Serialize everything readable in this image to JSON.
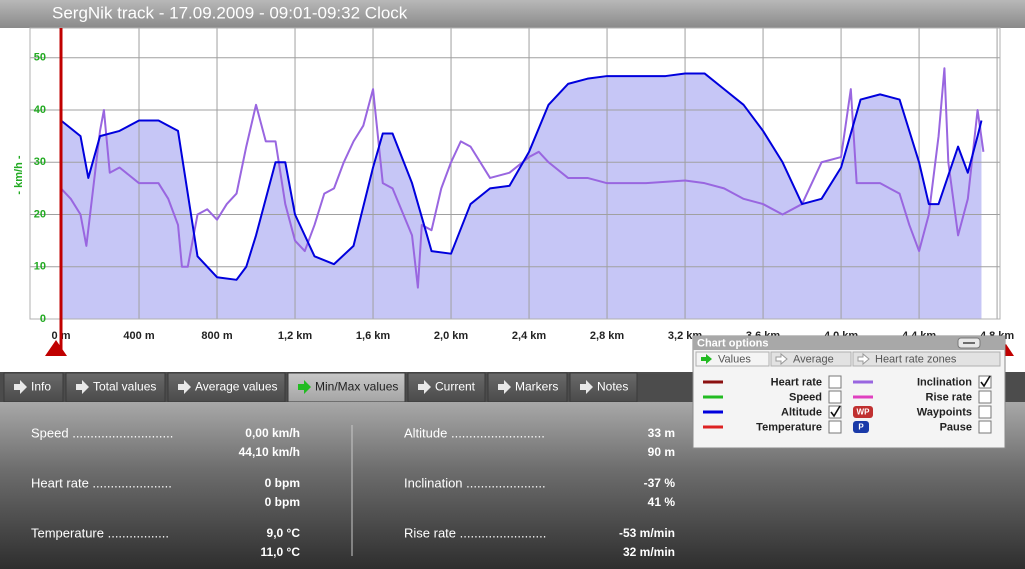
{
  "header": {
    "title": "SergNik track - 17.09.2009 - 09:01-09:32 Clock"
  },
  "chart_data": {
    "type": "line",
    "y_label": "- km/h -",
    "xlim": [
      -159,
      4815
    ],
    "ylim": [
      0,
      55.7
    ],
    "xticks": [
      {
        "value": 0,
        "label": "0 m"
      },
      {
        "value": 400,
        "label": "400 m"
      },
      {
        "value": 800,
        "label": "800 m"
      },
      {
        "value": 1200,
        "label": "1,2 km"
      },
      {
        "value": 1600,
        "label": "1,6 km"
      },
      {
        "value": 2000,
        "label": "2,0 km"
      },
      {
        "value": 2400,
        "label": "2,4 km"
      },
      {
        "value": 2800,
        "label": "2,8 km"
      },
      {
        "value": 3200,
        "label": "3,2 km"
      },
      {
        "value": 3600,
        "label": "3,6 km"
      },
      {
        "value": 4000,
        "label": "4,0 km"
      },
      {
        "value": 4400,
        "label": "4,4 km"
      },
      {
        "value": 4800,
        "label": "4,8 km"
      }
    ],
    "yticks": [
      0,
      10,
      20,
      30,
      40,
      50
    ],
    "grid": true,
    "series": [
      {
        "name": "Altitude",
        "color": "#0000dd",
        "fill": "#c6c6f6",
        "checked": true,
        "x": [
          0,
          100,
          140,
          200,
          300,
          400,
          500,
          600,
          700,
          800,
          900,
          950,
          1000,
          1100,
          1150,
          1200,
          1300,
          1400,
          1500,
          1600,
          1650,
          1700,
          1800,
          1900,
          2000,
          2100,
          2200,
          2300,
          2400,
          2500,
          2600,
          2700,
          2800,
          2900,
          3000,
          3100,
          3200,
          3300,
          3400,
          3500,
          3600,
          3700,
          3800,
          3900,
          4000,
          4100,
          4200,
          4300,
          4400,
          4450,
          4500,
          4600,
          4650,
          4700,
          4720
        ],
        "values": [
          38,
          35,
          27,
          35,
          36,
          38,
          38,
          36,
          12,
          8,
          7.5,
          10,
          16,
          30,
          30,
          20,
          12,
          10.5,
          14,
          29,
          35.5,
          35.5,
          26,
          13,
          12.5,
          22,
          25,
          25.5,
          32,
          41,
          45,
          46,
          46.5,
          46.5,
          46.5,
          46.5,
          47,
          47,
          44,
          41,
          36,
          30,
          22,
          23,
          29,
          42,
          43,
          42,
          30,
          22,
          22,
          33,
          28,
          35,
          38
        ]
      },
      {
        "name": "Inclination",
        "color": "#9966e0",
        "checked": true,
        "x": [
          0,
          50,
          100,
          130,
          200,
          220,
          250,
          300,
          400,
          500,
          550,
          600,
          620,
          650,
          700,
          750,
          800,
          850,
          900,
          950,
          1000,
          1050,
          1100,
          1150,
          1200,
          1250,
          1300,
          1350,
          1400,
          1450,
          1500,
          1550,
          1600,
          1650,
          1700,
          1800,
          1830,
          1850,
          1900,
          1950,
          2000,
          2050,
          2100,
          2200,
          2300,
          2400,
          2450,
          2500,
          2600,
          2700,
          2800,
          3000,
          3200,
          3300,
          3400,
          3500,
          3600,
          3700,
          3800,
          3900,
          4000,
          4050,
          4080,
          4200,
          4300,
          4350,
          4400,
          4450,
          4500,
          4530,
          4550,
          4600,
          4650,
          4700,
          4730
        ],
        "values": [
          25,
          23,
          20,
          14,
          36,
          40,
          28,
          29,
          26,
          26,
          23,
          18,
          10,
          10,
          20,
          21,
          19,
          22,
          24,
          33,
          41,
          34,
          34,
          22,
          15,
          13,
          18,
          24,
          25,
          30,
          34,
          37,
          44,
          26,
          25,
          16,
          6,
          18,
          17,
          25,
          30,
          34,
          33,
          27,
          28,
          31,
          32,
          30,
          27,
          27,
          26,
          26,
          26.5,
          26,
          25,
          23,
          22,
          20,
          22,
          30,
          31,
          44,
          26,
          26,
          24,
          18,
          13,
          20,
          35,
          48,
          30,
          16,
          23,
          40,
          32
        ]
      }
    ]
  },
  "tabs": {
    "items": [
      "Info",
      "Total values",
      "Average values",
      "Min/Max values",
      "Current",
      "Markers",
      "Notes"
    ],
    "active": 3
  },
  "min_max": {
    "left": [
      {
        "label": "Speed ............................",
        "min": "0,00 km/h",
        "max": "44,10 km/h"
      },
      {
        "label": "Heart rate ......................",
        "min": "0 bpm",
        "max": "0 bpm"
      },
      {
        "label": "Temperature .................",
        "min": "9,0 °C",
        "max": "11,0 °C"
      }
    ],
    "right": [
      {
        "label": "Altitude ..........................",
        "min": "33 m",
        "max": "90 m"
      },
      {
        "label": "Inclination ......................",
        "min": "-37 %",
        "max": "41 %"
      },
      {
        "label": "Rise rate ........................",
        "min": "-53 m/min",
        "max": "32 m/min"
      }
    ]
  },
  "chart_options": {
    "title": "Chart options",
    "tabs": [
      "Values",
      "Average",
      "Heart rate zones"
    ],
    "heart_rate": {
      "label": "Heart rate",
      "color": "#8b1010",
      "checked": false
    },
    "speed": {
      "label": "Speed",
      "color": "#22bb22",
      "checked": false
    },
    "temperature": {
      "label": "Temperature",
      "color": "#dd2222",
      "checked": false
    },
    "rise_rate": {
      "label": "Rise rate",
      "color": "#e040c0",
      "checked": false
    },
    "waypoints": {
      "label": "Waypoints",
      "icon": "WP",
      "color": "#c03030",
      "checked": false
    },
    "pause": {
      "label": "Pause",
      "icon": "P",
      "color": "#1a3aa8",
      "checked": false
    }
  }
}
